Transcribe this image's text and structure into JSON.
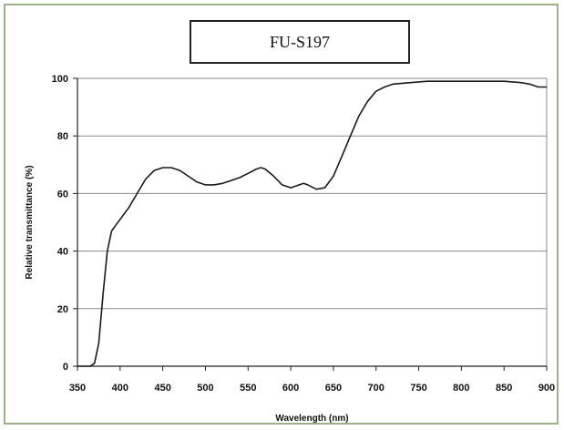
{
  "chart_data": {
    "type": "line",
    "title": "FU-S197",
    "xlabel": "Wavelength (nm)",
    "ylabel": "Relative transmittance (%)",
    "xlim": [
      350,
      900
    ],
    "ylim": [
      0,
      100
    ],
    "x_ticks": [
      "350",
      "400",
      "450",
      "500",
      "550",
      "600",
      "650",
      "700",
      "750",
      "800",
      "850",
      "900"
    ],
    "y_ticks": [
      "0",
      "20",
      "40",
      "60",
      "80",
      "100"
    ],
    "grid": true,
    "legend": "none",
    "series": [
      {
        "color": "#1a1a1a",
        "x": [
          350,
          365,
          370,
          375,
          380,
          385,
          390,
          395,
          400,
          410,
          420,
          430,
          440,
          450,
          460,
          470,
          480,
          490,
          500,
          510,
          520,
          530,
          540,
          550,
          560,
          565,
          570,
          580,
          590,
          600,
          610,
          615,
          620,
          630,
          640,
          650,
          660,
          670,
          680,
          690,
          700,
          710,
          720,
          740,
          760,
          800,
          820,
          850,
          870,
          880,
          890,
          900
        ],
        "y": [
          0,
          0,
          1,
          8,
          25,
          40,
          47,
          49,
          51,
          55,
          60,
          65,
          68,
          69,
          69,
          68,
          66,
          64,
          63,
          63,
          63.5,
          64.5,
          65.5,
          67,
          68.5,
          69,
          68.5,
          66,
          63,
          62,
          63,
          63.5,
          63,
          61.5,
          62,
          66,
          73,
          80,
          87,
          92,
          95.5,
          97,
          98,
          98.5,
          99,
          99,
          99,
          99,
          98.5,
          98,
          97,
          97
        ]
      }
    ]
  }
}
